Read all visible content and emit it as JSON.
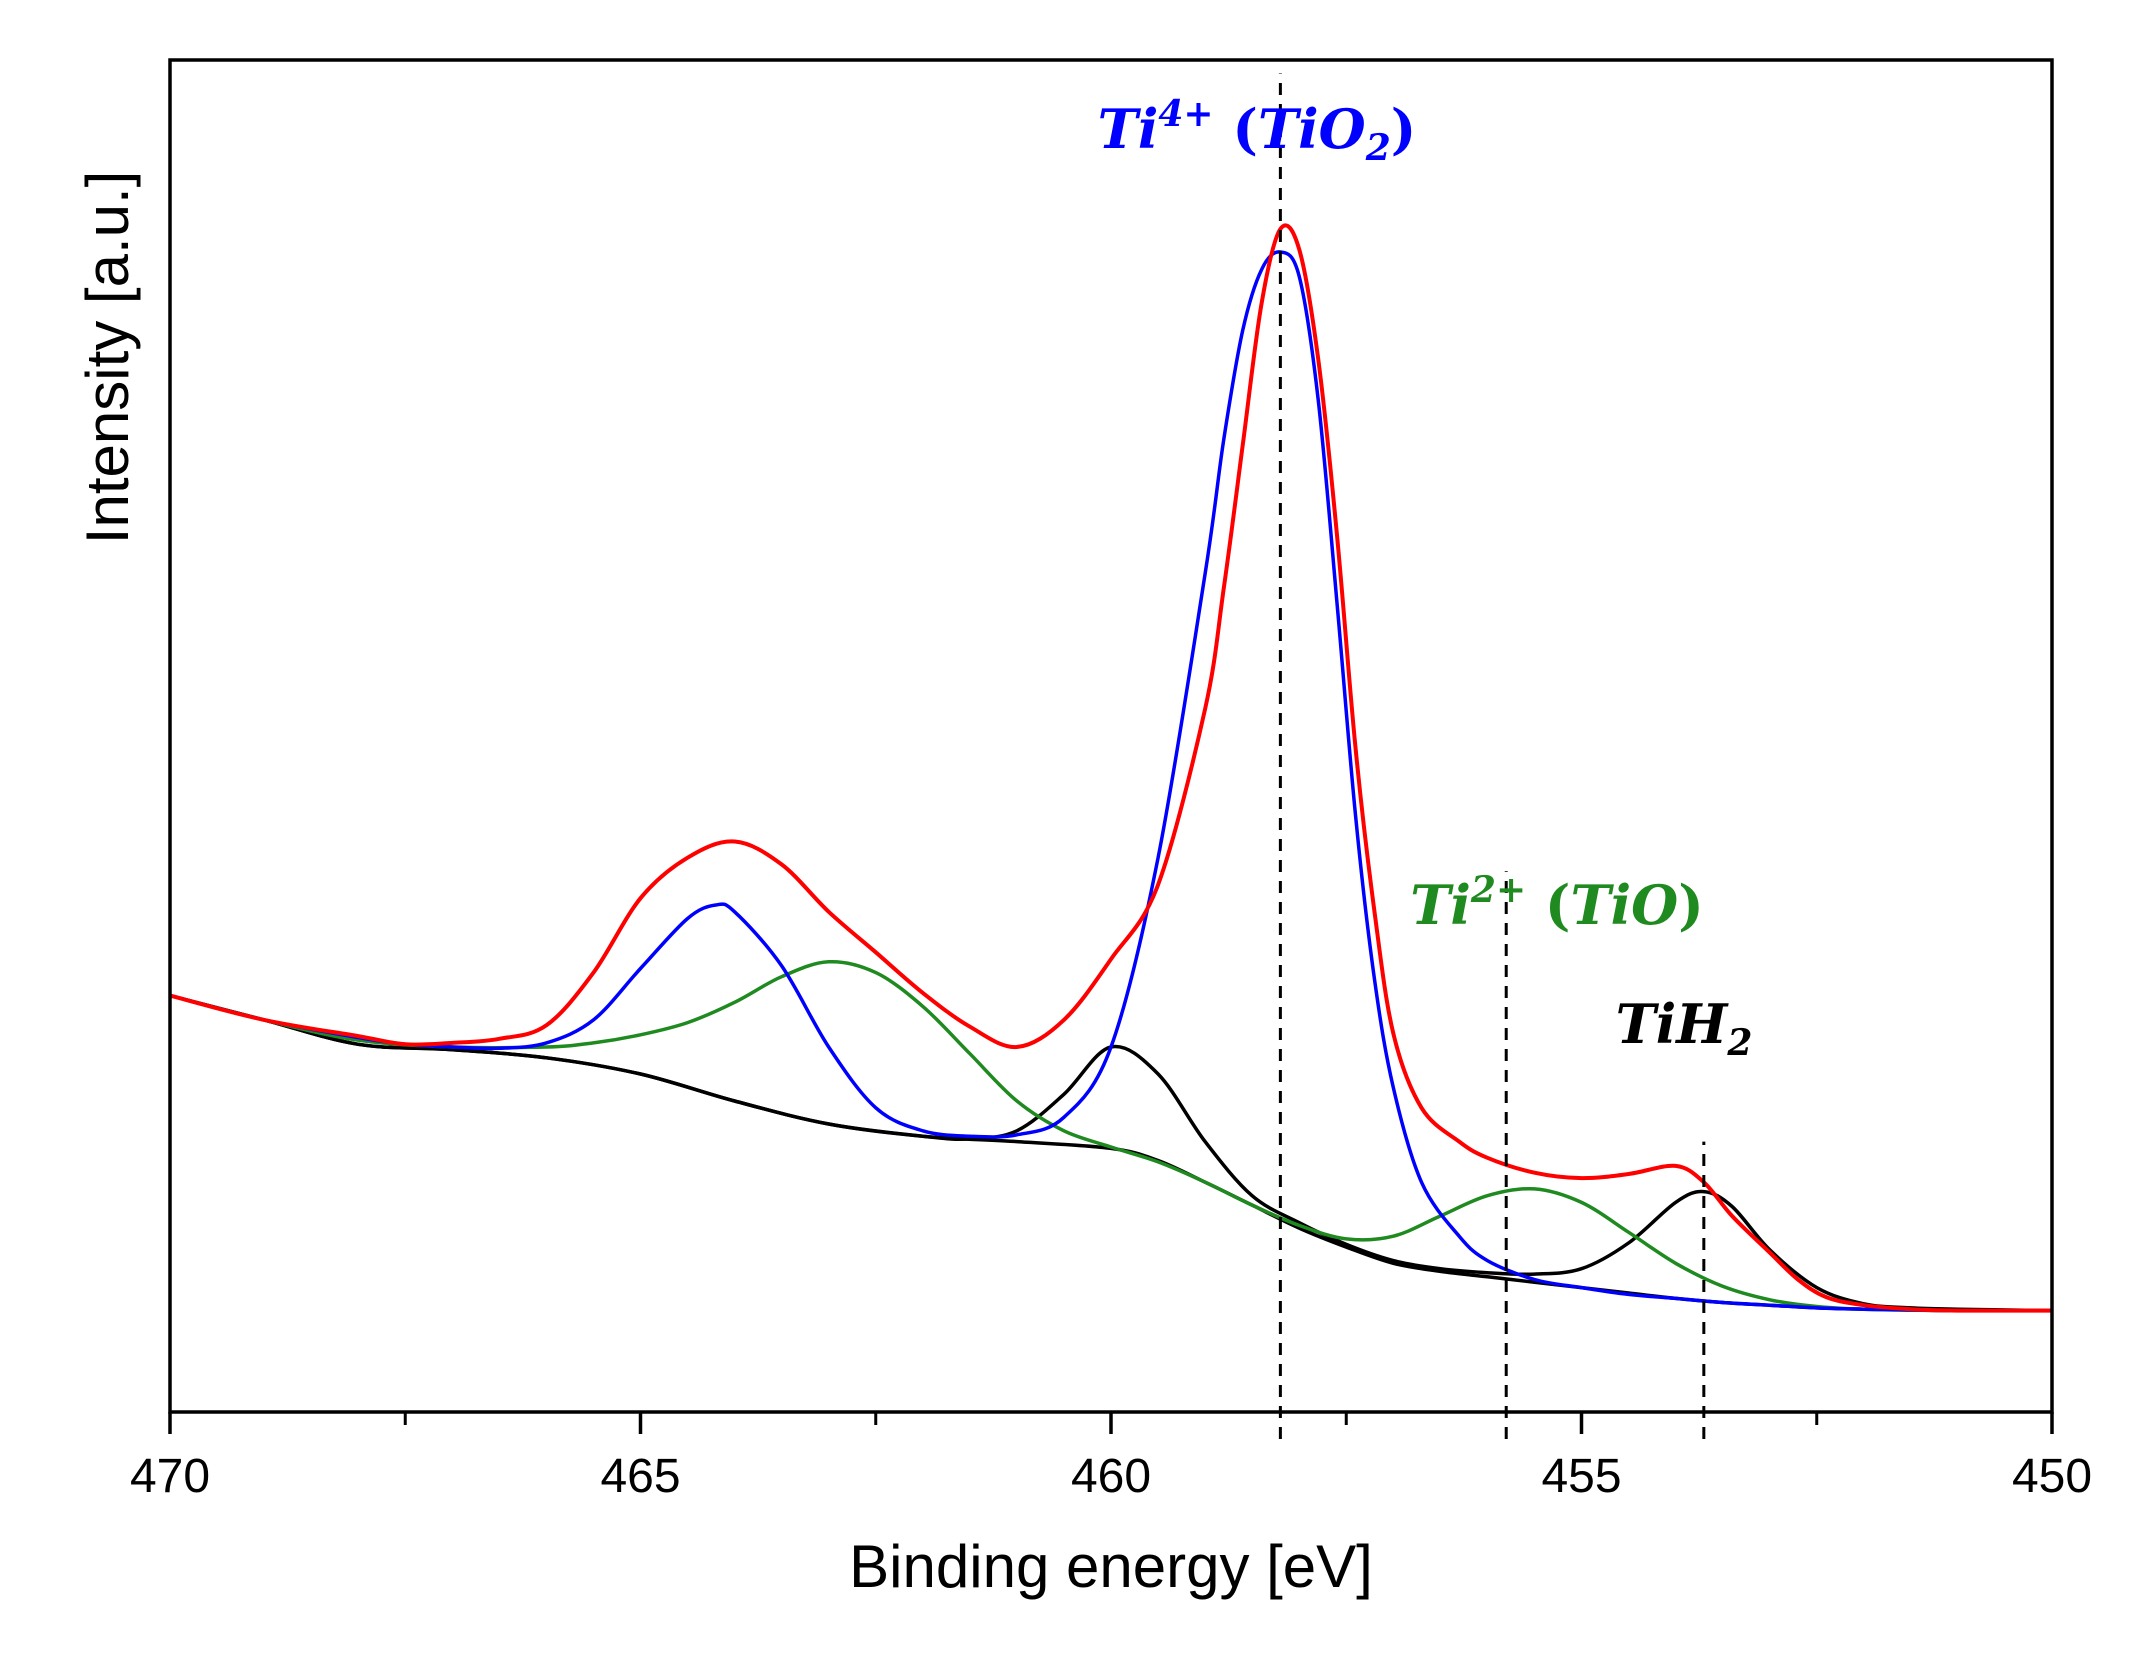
{
  "chart_data": {
    "type": "line",
    "xlabel": "Binding energy [eV]",
    "ylabel": "Intensity [a.u.]",
    "xlim": [
      470,
      450
    ],
    "x_reversed": true,
    "ylim": [
      0,
      100
    ],
    "x_ticks": [
      470,
      465,
      460,
      455,
      450
    ],
    "x_ticks_minor": [
      467.5,
      462.5,
      457.5,
      452.5
    ],
    "y_ticks_shown": false,
    "grid": false,
    "legend": "none",
    "colors": {
      "measured": "#ff0000",
      "ti4": "#0000ff",
      "ti2": "#1f8a1f",
      "tih2": "#000000",
      "guide": "#000000"
    },
    "series": [
      {
        "key": "measured",
        "x": [
          470,
          469,
          468,
          467.5,
          467,
          466.5,
          466,
          465.5,
          465,
          464.5,
          464,
          463.5,
          463,
          462.5,
          462,
          461.5,
          461,
          460.5,
          460,
          459.5,
          459,
          458.8,
          458.6,
          458.4,
          458.2,
          458,
          457.8,
          457.6,
          457.4,
          457.2,
          457,
          456.7,
          456.3,
          456,
          455.5,
          455,
          454.5,
          454,
          453.7,
          453.4,
          453,
          452.7,
          452.4,
          452,
          451.5,
          451,
          450.5,
          450
        ],
        "values": [
          30.8,
          29.0,
          27.8,
          27.2,
          27.3,
          27.6,
          28.6,
          32.5,
          38.0,
          41.0,
          42.2,
          40.5,
          37.0,
          34.0,
          31.0,
          28.5,
          27.0,
          29.0,
          33.5,
          39.0,
          52.0,
          61.0,
          71.5,
          82.0,
          87.5,
          86.0,
          78.0,
          65.0,
          49.0,
          37.0,
          28.0,
          22.5,
          20.0,
          18.8,
          17.7,
          17.3,
          17.6,
          18.2,
          17.0,
          14.5,
          11.8,
          9.8,
          8.5,
          7.9,
          7.6,
          7.5,
          7.5,
          7.5
        ]
      },
      {
        "key": "ti4",
        "x": [
          470,
          469,
          468,
          467.5,
          467,
          466.5,
          466,
          465.5,
          465,
          464.5,
          464.2,
          464,
          463.5,
          463,
          462.5,
          462,
          461.5,
          461,
          460.5,
          460,
          459.5,
          459,
          458.8,
          458.6,
          458.4,
          458.2,
          458,
          457.8,
          457.6,
          457.4,
          457.2,
          457,
          456.7,
          456.3,
          456,
          455.5,
          455,
          454.5,
          454,
          453.5,
          453,
          452.5,
          452,
          451,
          450
        ],
        "values": [
          30.8,
          29.0,
          27.7,
          27.2,
          27.0,
          26.9,
          27.3,
          29.0,
          32.8,
          36.5,
          37.5,
          37.0,
          33.0,
          27.0,
          22.5,
          20.8,
          20.4,
          20.5,
          21.8,
          27.0,
          41.0,
          62.0,
          72.0,
          80.0,
          84.5,
          85.8,
          84.0,
          75.0,
          60.0,
          44.0,
          32.0,
          24.0,
          17.0,
          13.0,
          11.2,
          9.8,
          9.2,
          8.7,
          8.4,
          8.1,
          7.9,
          7.7,
          7.6,
          7.5,
          7.5
        ]
      },
      {
        "key": "ti2",
        "x": [
          470,
          469,
          468,
          467,
          466,
          465.5,
          465,
          464.5,
          464,
          463.5,
          463,
          462.5,
          462,
          461.5,
          461,
          460.5,
          460,
          459.5,
          459,
          458.5,
          458,
          457.5,
          457,
          456.5,
          456,
          455.5,
          455,
          454.5,
          454,
          453.5,
          453,
          452.5,
          452,
          451,
          450
        ],
        "values": [
          30.8,
          29.0,
          27.5,
          27.0,
          27.0,
          27.3,
          27.9,
          28.8,
          30.3,
          32.2,
          33.3,
          32.5,
          30.0,
          26.5,
          23.0,
          20.8,
          19.6,
          18.5,
          17.0,
          15.3,
          13.8,
          12.8,
          13.0,
          14.5,
          16.0,
          16.5,
          15.5,
          13.3,
          11.0,
          9.3,
          8.3,
          7.8,
          7.6,
          7.5,
          7.5
        ]
      },
      {
        "key": "tih2",
        "x": [
          470,
          469,
          468,
          467,
          466,
          465,
          464,
          463,
          462,
          461.5,
          461,
          460.5,
          460,
          459.5,
          459,
          458.5,
          458,
          457.5,
          457,
          456.5,
          456,
          455.5,
          455,
          454.5,
          454,
          453.7,
          453.4,
          453,
          452.5,
          452,
          451.5,
          451,
          450
        ],
        "values": [
          30.8,
          29.0,
          27.2,
          26.8,
          26.2,
          25.0,
          23.0,
          21.3,
          20.4,
          20.2,
          20.8,
          23.5,
          27.0,
          25.0,
          20.0,
          16.0,
          14.0,
          12.4,
          11.2,
          10.6,
          10.3,
          10.2,
          10.6,
          12.5,
          15.5,
          16.3,
          15.2,
          12.0,
          9.2,
          8.0,
          7.7,
          7.6,
          7.5
        ]
      },
      {
        "key": "background",
        "x": [
          470,
          469,
          468,
          467,
          466,
          465,
          464,
          463,
          462,
          461,
          460,
          459.5,
          459,
          458.5,
          458,
          457.5,
          457,
          456.5,
          456,
          455.5,
          455,
          454.5,
          454,
          453.5,
          453,
          452.5,
          452,
          451,
          450
        ],
        "values": [
          30.8,
          29.0,
          27.2,
          26.8,
          26.2,
          25.0,
          23.0,
          21.3,
          20.4,
          20.0,
          19.5,
          18.6,
          17.0,
          15.3,
          13.6,
          12.2,
          11.0,
          10.4,
          10.0,
          9.6,
          9.2,
          8.8,
          8.4,
          8.1,
          7.9,
          7.7,
          7.6,
          7.5,
          7.5
        ]
      }
    ],
    "annotations": [
      {
        "key": "ti4",
        "base": "Ti",
        "sup": "4+",
        "paren_open": "(",
        "formula_base": "TiO",
        "formula_sub": "2",
        "paren_close": ")",
        "x": 458.2,
        "line_from": -2,
        "line_to": 99
      },
      {
        "key": "ti2",
        "base": "Ti",
        "sup": "2+",
        "paren_open": "(",
        "formula_base": "TiO",
        "formula_sub": "",
        "paren_close": ")",
        "x": 455.8,
        "line_from": -2,
        "line_to": 40
      },
      {
        "key": "tih2",
        "base": "TiH",
        "sup": "",
        "paren_open": "",
        "formula_base": "",
        "formula_sub": "2",
        "paren_close": "",
        "x": 453.7,
        "line_from": -2,
        "line_to": 20
      }
    ]
  }
}
